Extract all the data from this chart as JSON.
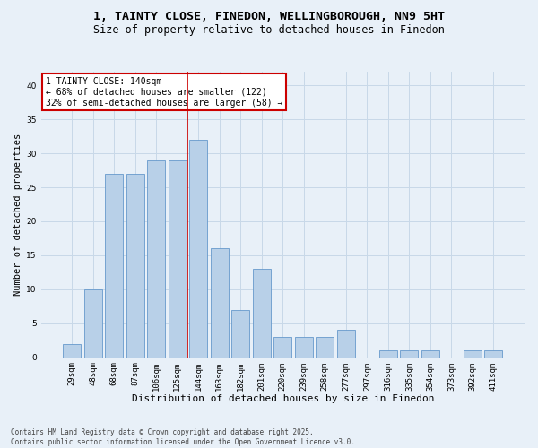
{
  "title_line1": "1, TAINTY CLOSE, FINEDON, WELLINGBOROUGH, NN9 5HT",
  "title_line2": "Size of property relative to detached houses in Finedon",
  "xlabel": "Distribution of detached houses by size in Finedon",
  "ylabel": "Number of detached properties",
  "categories": [
    "29sqm",
    "48sqm",
    "68sqm",
    "87sqm",
    "106sqm",
    "125sqm",
    "144sqm",
    "163sqm",
    "182sqm",
    "201sqm",
    "220sqm",
    "239sqm",
    "258sqm",
    "277sqm",
    "297sqm",
    "316sqm",
    "335sqm",
    "354sqm",
    "373sqm",
    "392sqm",
    "411sqm"
  ],
  "values": [
    2,
    10,
    27,
    27,
    29,
    29,
    32,
    16,
    7,
    13,
    3,
    3,
    3,
    4,
    0,
    1,
    1,
    1,
    0,
    1,
    1
  ],
  "bar_color": "#b8d0e8",
  "bar_edge_color": "#6699cc",
  "highlight_index": 6,
  "highlight_line_color": "#cc0000",
  "annotation_text": "1 TAINTY CLOSE: 140sqm\n← 68% of detached houses are smaller (122)\n32% of semi-detached houses are larger (58) →",
  "annotation_box_color": "#ffffff",
  "annotation_box_edge_color": "#cc0000",
  "ylim": [
    0,
    42
  ],
  "yticks": [
    0,
    5,
    10,
    15,
    20,
    25,
    30,
    35,
    40
  ],
  "grid_color": "#c8d8e8",
  "background_color": "#e8f0f8",
  "footer_text": "Contains HM Land Registry data © Crown copyright and database right 2025.\nContains public sector information licensed under the Open Government Licence v3.0.",
  "title_fontsize": 9.5,
  "subtitle_fontsize": 8.5,
  "tick_fontsize": 6.5,
  "xlabel_fontsize": 8,
  "ylabel_fontsize": 7.5,
  "annotation_fontsize": 7,
  "footer_fontsize": 5.5
}
